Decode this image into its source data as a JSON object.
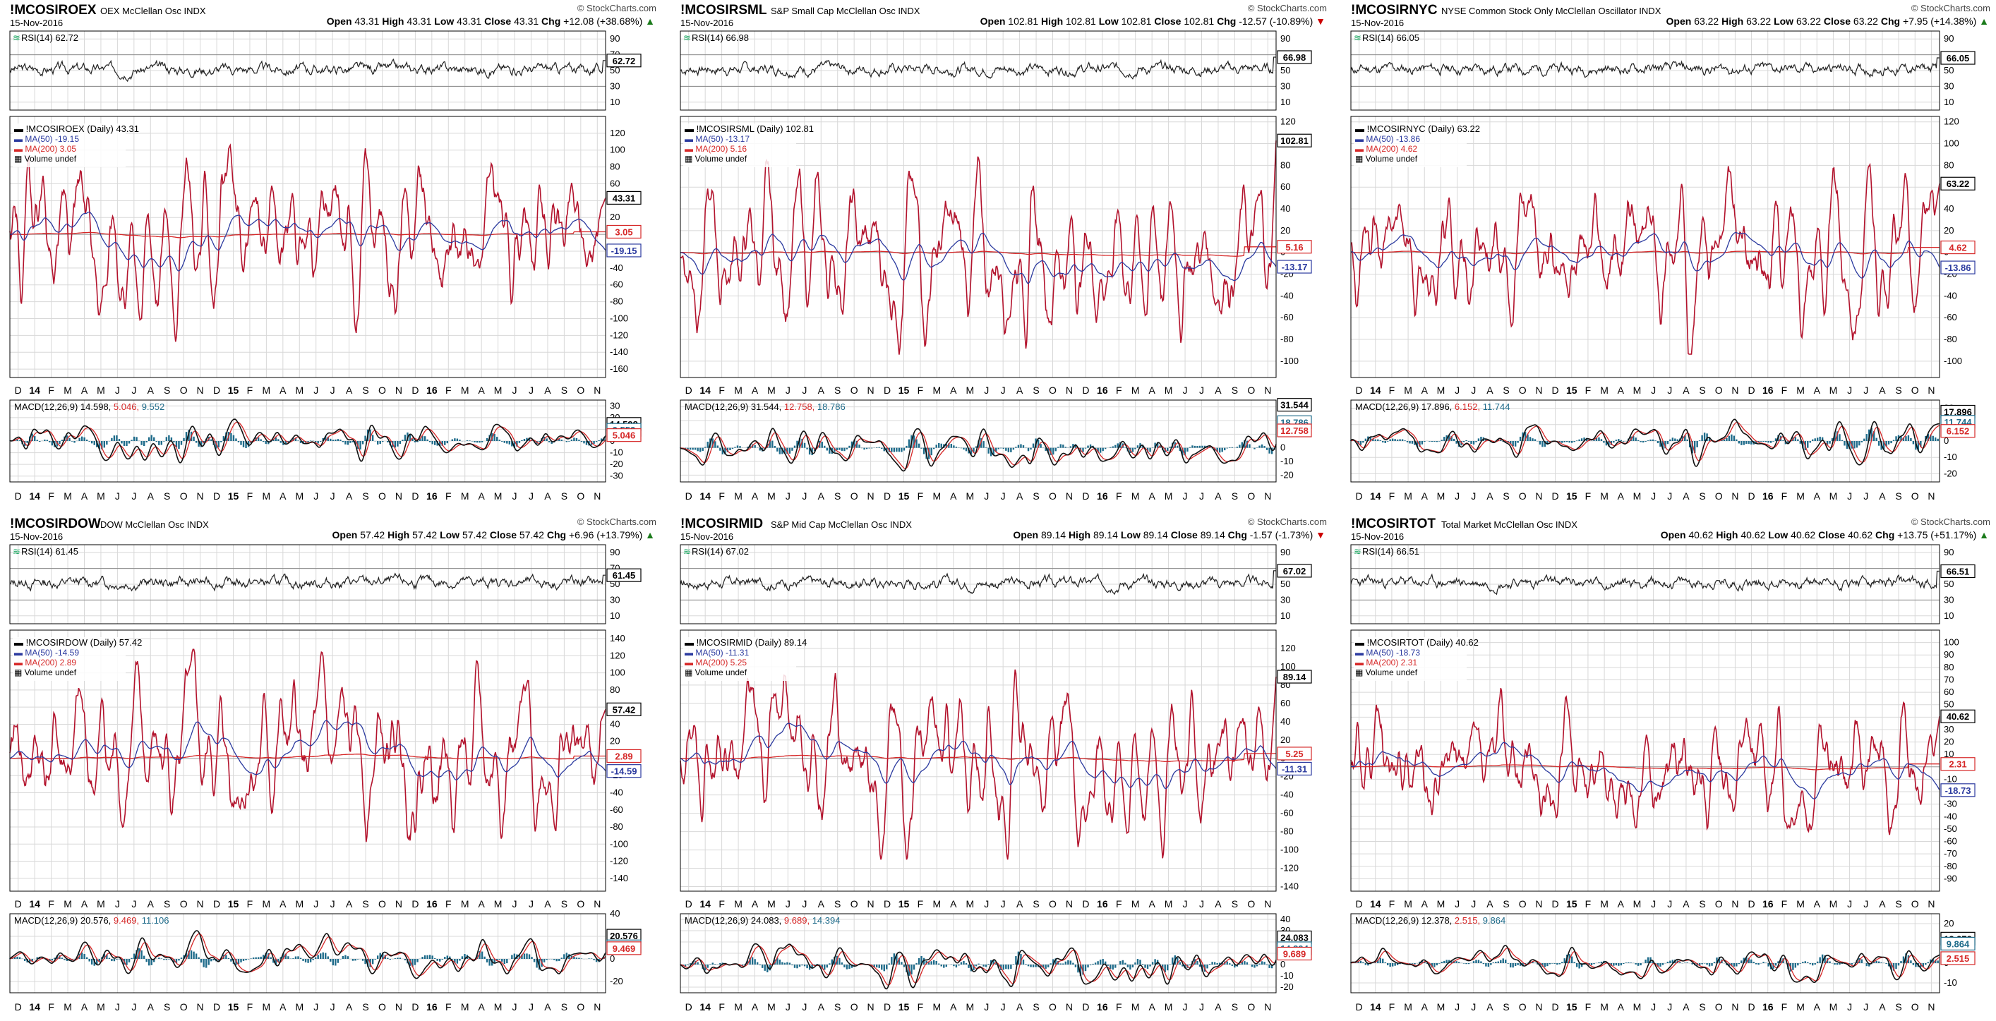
{
  "page": {
    "watermark": "© StockCharts.com",
    "colors": {
      "price": "#b3132d",
      "price_up": "#111111",
      "ma50": "#2b3a9f",
      "ma200": "#d62828",
      "rsi": "#222222",
      "macd": "#111111",
      "signal": "#d62828",
      "hist": "#1e6b8a",
      "grid": "#d8d8d8",
      "frame": "#000000",
      "bg": "#ffffff"
    }
  },
  "x_axis": {
    "months": [
      "D",
      "14",
      "F",
      "M",
      "A",
      "M",
      "J",
      "J",
      "A",
      "S",
      "O",
      "N",
      "D",
      "15",
      "F",
      "M",
      "A",
      "M",
      "J",
      "J",
      "A",
      "S",
      "O",
      "N",
      "D",
      "16",
      "F",
      "M",
      "A",
      "M",
      "J",
      "J",
      "A",
      "S",
      "O",
      "N"
    ],
    "bold": [
      "14",
      "15",
      "16"
    ]
  },
  "chart_data": [
    {
      "type": "line",
      "symbol": "!MCOSIROEX",
      "name": "OEX McClellan Osc",
      "exchange": "INDX",
      "date": "15-Nov-2016",
      "ohlc": {
        "open": "43.31",
        "high": "43.31",
        "low": "43.31",
        "close": "43.31",
        "chg": "+12.08 (+38.68%)",
        "dir": "up"
      },
      "rsi": {
        "label": "RSI(14) 62.72",
        "last": "62.72",
        "value": 62.72,
        "ticks": [
          90,
          70,
          50,
          30,
          10
        ]
      },
      "price": {
        "label": "!MCOSIROEX (Daily) 43.31",
        "ma50_label": "MA(50) -19.15",
        "ma200_label": "MA(200) 3.05",
        "volume_label": "Volume undef",
        "last": "43.31",
        "last_value": 43.31,
        "ma50": "-19.15",
        "ma50_value": -19.15,
        "ma200": "3.05",
        "ma200_value": 3.05,
        "ylim": [
          -170,
          140
        ],
        "ticks": [
          120,
          100,
          80,
          60,
          40,
          20,
          0,
          -20,
          -40,
          -60,
          -80,
          -100,
          -120,
          -140,
          -160
        ],
        "amp": 75,
        "seed": 3
      },
      "macd": {
        "label": "MACD(12,26,9)",
        "v1": "14.598",
        "v2": "5.046",
        "v3": "9.552",
        "tag1": "14.598",
        "tag2": "9.552",
        "tag3": "5.046",
        "ylim": [
          -35,
          35
        ],
        "ticks": [
          30,
          20,
          10,
          0,
          -10,
          -20,
          -30
        ]
      }
    },
    {
      "type": "line",
      "symbol": "!MCOSIRSML",
      "name": "S&P Small Cap McClellan Osc",
      "exchange": "INDX",
      "date": "15-Nov-2016",
      "ohlc": {
        "open": "102.81",
        "high": "102.81",
        "low": "102.81",
        "close": "102.81",
        "chg": "-12.57 (-10.89%)",
        "dir": "down"
      },
      "rsi": {
        "label": "RSI(14) 66.98",
        "last": "66.98",
        "value": 66.98,
        "ticks": [
          90,
          70,
          50,
          30,
          10
        ]
      },
      "price": {
        "label": "!MCOSIRSML (Daily) 102.81",
        "ma50_label": "MA(50) -13.17",
        "ma200_label": "MA(200) 5.16",
        "volume_label": "Volume undef",
        "last": "102.81",
        "last_value": 102.81,
        "ma50": "-13.17",
        "ma50_value": -13.17,
        "ma200": "5.16",
        "ma200_value": 5.16,
        "ylim": [
          -115,
          125
        ],
        "ticks": [
          120,
          100,
          80,
          60,
          40,
          20,
          0,
          -20,
          -40,
          -60,
          -80,
          -100
        ],
        "amp": 60,
        "seed": 7
      },
      "macd": {
        "label": "MACD(12,26,9)",
        "v1": "31.544",
        "v2": "12.758",
        "v3": "18.786",
        "tag1": "31.544",
        "tag2": "18.786",
        "tag3": "12.758",
        "ylim": [
          -25,
          35
        ],
        "ticks": [
          30,
          20,
          10,
          0,
          -10,
          -20
        ]
      }
    },
    {
      "type": "line",
      "symbol": "!MCOSIRNYC",
      "name": "NYSE Common Stock Only McClellan Oscillator",
      "exchange": "INDX",
      "date": "15-Nov-2016",
      "ohlc": {
        "open": "63.22",
        "high": "63.22",
        "low": "63.22",
        "close": "63.22",
        "chg": "+7.95 (+14.38%)",
        "dir": "up"
      },
      "rsi": {
        "label": "RSI(14) 66.05",
        "last": "66.05",
        "value": 66.05,
        "ticks": [
          90,
          70,
          50,
          30,
          10
        ]
      },
      "price": {
        "label": "!MCOSIRNYC (Daily) 63.22",
        "ma50_label": "MA(50) -13.86",
        "ma200_label": "MA(200) 4.62",
        "volume_label": "Volume undef",
        "last": "63.22",
        "last_value": 63.22,
        "ma50": "-13.86",
        "ma50_value": -13.86,
        "ma200": "4.62",
        "ma200_value": 4.62,
        "ylim": [
          -115,
          125
        ],
        "ticks": [
          120,
          100,
          80,
          60,
          40,
          20,
          0,
          -20,
          -40,
          -60,
          -80,
          -100
        ],
        "amp": 55,
        "seed": 11
      },
      "macd": {
        "label": "MACD(12,26,9)",
        "v1": "17.896",
        "v2": "6.152",
        "v3": "11.744",
        "tag1": "17.896",
        "tag2": "11.744",
        "tag3": "6.152",
        "ylim": [
          -25,
          25
        ],
        "ticks": [
          20,
          10,
          0,
          -10,
          -20
        ]
      }
    },
    {
      "type": "line",
      "symbol": "!MCOSIRDOW",
      "name": "DOW McClellan Osc",
      "exchange": "INDX",
      "date": "15-Nov-2016",
      "ohlc": {
        "open": "57.42",
        "high": "57.42",
        "low": "57.42",
        "close": "57.42",
        "chg": "+6.96 (+13.79%)",
        "dir": "up"
      },
      "rsi": {
        "label": "RSI(14) 61.45",
        "last": "61.45",
        "value": 61.45,
        "ticks": [
          90,
          70,
          50,
          30,
          10
        ]
      },
      "price": {
        "label": "!MCOSIRDOW (Daily) 57.42",
        "ma50_label": "MA(50) -14.59",
        "ma200_label": "MA(200) 2.89",
        "volume_label": "Volume undef",
        "last": "57.42",
        "last_value": 57.42,
        "ma50": "-14.59",
        "ma50_value": -14.59,
        "ma200": "2.89",
        "ma200_value": 2.89,
        "ylim": [
          -155,
          150
        ],
        "ticks": [
          140,
          120,
          100,
          80,
          60,
          40,
          20,
          0,
          -20,
          -40,
          -60,
          -80,
          -100,
          -120,
          -140
        ],
        "amp": 75,
        "seed": 13
      },
      "macd": {
        "label": "MACD(12,26,9)",
        "v1": "20.576",
        "v2": "9.469",
        "v3": "11.106",
        "tag1": "20.576",
        "tag2": "11.106",
        "tag3": "9.469",
        "ylim": [
          -30,
          40
        ],
        "ticks": [
          40,
          20,
          0,
          -20
        ]
      }
    },
    {
      "type": "line",
      "symbol": "!MCOSIRMID",
      "name": "S&P Mid Cap McClellan Osc",
      "exchange": "INDX",
      "date": "15-Nov-2016",
      "ohlc": {
        "open": "89.14",
        "high": "89.14",
        "low": "89.14",
        "close": "89.14",
        "chg": "-1.57 (-1.73%)",
        "dir": "down"
      },
      "rsi": {
        "label": "RSI(14) 67.02",
        "last": "67.02",
        "value": 67.02,
        "ticks": [
          90,
          70,
          50,
          30,
          10
        ]
      },
      "price": {
        "label": "!MCOSIRMID (Daily) 89.14",
        "ma50_label": "MA(50) -11.31",
        "ma200_label": "MA(200) 5.25",
        "volume_label": "Volume undef",
        "last": "89.14",
        "last_value": 89.14,
        "ma50": "-11.31",
        "ma50_value": -11.31,
        "ma200": "5.25",
        "ma200_value": 5.25,
        "ylim": [
          -145,
          140
        ],
        "ticks": [
          120,
          100,
          80,
          60,
          40,
          20,
          0,
          -20,
          -40,
          -60,
          -80,
          -100,
          -120,
          -140
        ],
        "amp": 65,
        "seed": 17
      },
      "macd": {
        "label": "MACD(12,26,9)",
        "v1": "24.083",
        "v2": "9.689",
        "v3": "14.394",
        "tag1": "24.083",
        "tag2": "14.394",
        "tag3": "9.689",
        "ylim": [
          -25,
          45
        ],
        "ticks": [
          40,
          30,
          20,
          10,
          0,
          -10,
          -20
        ]
      }
    },
    {
      "type": "line",
      "symbol": "!MCOSIRTOT",
      "name": "Total Market McClellan Osc",
      "exchange": "INDX",
      "date": "15-Nov-2016",
      "ohlc": {
        "open": "40.62",
        "high": "40.62",
        "low": "40.62",
        "close": "40.62",
        "chg": "+13.75 (+51.17%)",
        "dir": "up"
      },
      "rsi": {
        "label": "RSI(14) 66.51",
        "last": "66.51",
        "value": 66.51,
        "ticks": [
          90,
          70,
          50,
          30,
          10
        ]
      },
      "price": {
        "label": "!MCOSIRTOT (Daily) 40.62",
        "ma50_label": "MA(50) -18.73",
        "ma200_label": "MA(200) 2.31",
        "volume_label": "Volume undef",
        "last": "40.62",
        "last_value": 40.62,
        "ma50": "-18.73",
        "ma50_value": -18.73,
        "ma200": "2.31",
        "ma200_value": 2.31,
        "ylim": [
          -100,
          110
        ],
        "ticks": [
          100,
          90,
          80,
          70,
          60,
          50,
          40,
          30,
          20,
          10,
          0,
          -10,
          -20,
          -30,
          -40,
          -50,
          -60,
          -70,
          -80,
          -90
        ],
        "amp": 45,
        "seed": 23
      },
      "macd": {
        "label": "MACD(12,26,9)",
        "v1": "12.378",
        "v2": "2.515",
        "v3": "9.864",
        "tag1": "12.378",
        "tag2": "9.864",
        "tag3": "2.515",
        "ylim": [
          -15,
          25
        ],
        "ticks": [
          20,
          10,
          0,
          -10
        ]
      }
    }
  ]
}
